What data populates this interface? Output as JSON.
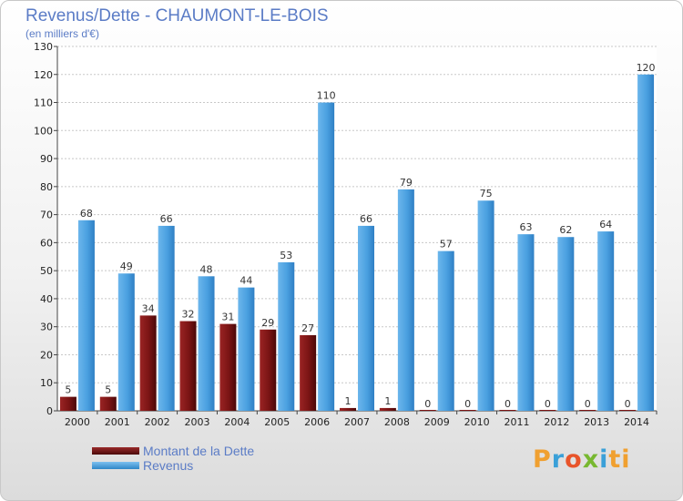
{
  "chart_data": {
    "type": "bar",
    "title": "Revenus/Dette - CHAUMONT-LE-BOIS",
    "subtitle": "(en milliers d'€)",
    "categories": [
      "2000",
      "2001",
      "2002",
      "2003",
      "2004",
      "2005",
      "2006",
      "2007",
      "2008",
      "2009",
      "2010",
      "2011",
      "2012",
      "2013",
      "2014"
    ],
    "series": [
      {
        "name": "Montant de la Dette",
        "color": "#7a1414",
        "values": [
          5,
          5,
          34,
          32,
          31,
          29,
          27,
          1,
          1,
          0,
          0,
          0,
          0,
          0,
          0
        ]
      },
      {
        "name": "Revenus",
        "color": "#4fa3e0",
        "values": [
          68,
          49,
          66,
          48,
          44,
          53,
          110,
          66,
          79,
          57,
          75,
          63,
          62,
          64,
          120
        ]
      }
    ],
    "ylim": [
      0,
      130
    ],
    "yticks": [
      0,
      10,
      20,
      30,
      40,
      50,
      60,
      70,
      80,
      90,
      100,
      110,
      120,
      130
    ],
    "grid": true,
    "legend_position": "bottom-left"
  },
  "brand": {
    "letters": [
      "P",
      "r",
      "o",
      "x",
      "i",
      "ti"
    ]
  }
}
